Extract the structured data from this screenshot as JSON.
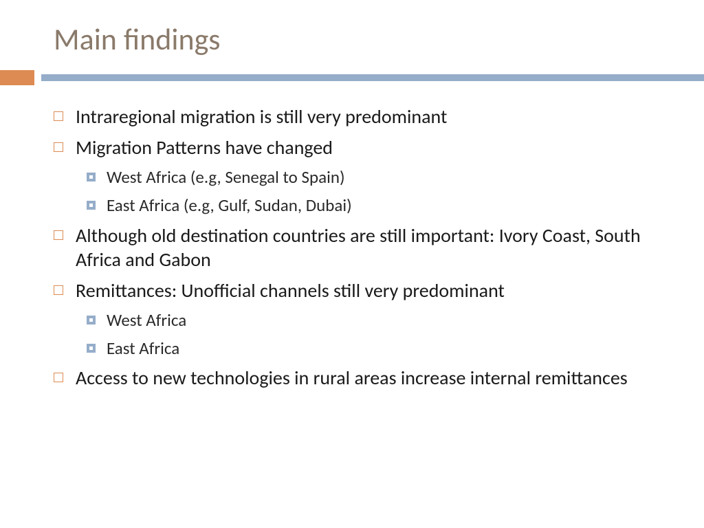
{
  "title": "Main findings",
  "colors": {
    "title_color": "#8a7a6a",
    "orange_accent": "#dd8b52",
    "blue_accent": "#95adc9",
    "text_color": "#1a1a1a"
  },
  "bullets": [
    {
      "level": 1,
      "text": "Intraregional migration is still very predominant"
    },
    {
      "level": 1,
      "text": "Migration Patterns have changed"
    },
    {
      "level": 2,
      "text": "West Africa (e.g, Senegal to Spain)"
    },
    {
      "level": 2,
      "text": "East Africa (e.g, Gulf, Sudan, Dubai)"
    },
    {
      "level": 1,
      "text": "Although old destination countries are still important: Ivory Coast, South Africa and Gabon"
    },
    {
      "level": 1,
      "text": "Remittances: Unofficial channels still very predominant"
    },
    {
      "level": 2,
      "text": "West Africa"
    },
    {
      "level": 2,
      "text": "East Africa"
    },
    {
      "level": 1,
      "text": "Access to new technologies in rural areas increase internal remittances"
    }
  ],
  "typography": {
    "title_fontsize": 44,
    "level1_fontsize": 28,
    "level2_fontsize": 25
  }
}
